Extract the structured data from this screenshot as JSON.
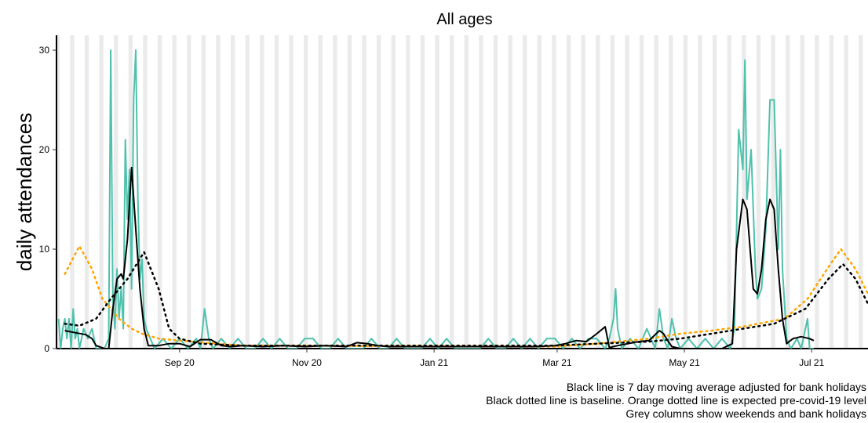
{
  "chart_data": {
    "type": "line",
    "title": "All ages",
    "ylabel": "daily attendances",
    "notes": [
      "Black line is 7 day moving average adjusted for bank holidays",
      "Black dotted line is baseline. Orange dotted line is expected pre-covid-19 level",
      "Grey columns show weekends and bank holidays"
    ],
    "xlim": [
      -59,
      330
    ],
    "ylim": [
      0,
      31.5
    ],
    "xticks": [
      {
        "value": 0,
        "label": "Sep 20"
      },
      {
        "value": 61,
        "label": "Nov 20"
      },
      {
        "value": 122,
        "label": "Jan 21"
      },
      {
        "value": 181,
        "label": "Mar 21"
      },
      {
        "value": 242,
        "label": "May 21"
      },
      {
        "value": 303,
        "label": "Jul 21"
      }
    ],
    "yticks": [
      0,
      10,
      20,
      30
    ],
    "series": [
      {
        "color": "#4fc1ac",
        "linestyle": "solid",
        "width": 2,
        "x": [
          -58,
          -57,
          -56,
          -55,
          -54,
          -53,
          -52,
          -51,
          -50,
          -49,
          -48,
          -46,
          -44,
          -42,
          -40,
          -36,
          -34,
          -33,
          -32,
          -31,
          -30,
          -29,
          -28,
          -27,
          -26,
          -25,
          -24,
          -23,
          -22,
          -21,
          -20,
          -19,
          -18,
          -17,
          -16,
          -14,
          -12,
          -8,
          -4,
          0,
          4,
          8,
          10,
          12,
          14,
          16,
          20,
          24,
          28,
          32,
          36,
          40,
          44,
          48,
          52,
          56,
          60,
          64,
          68,
          72,
          76,
          80,
          84,
          88,
          92,
          96,
          100,
          104,
          108,
          112,
          116,
          120,
          124,
          128,
          132,
          136,
          140,
          144,
          148,
          152,
          156,
          160,
          164,
          168,
          172,
          176,
          180,
          184,
          188,
          192,
          196,
          200,
          204,
          206,
          208,
          209,
          210,
          212,
          216,
          220,
          224,
          228,
          230,
          232,
          234,
          236,
          238,
          240,
          244,
          248,
          252,
          256,
          260,
          264,
          266,
          268,
          270,
          271,
          272,
          274,
          276,
          277,
          279,
          281,
          283,
          285,
          287,
          288,
          289,
          291,
          293,
          296,
          298,
          300,
          301,
          302,
          304
        ],
        "values": [
          3,
          0,
          2,
          3,
          1,
          3,
          0,
          4,
          1,
          2,
          0,
          2,
          1,
          2,
          0,
          0,
          1,
          30,
          5,
          2,
          8,
          3,
          6,
          2,
          21,
          13,
          18,
          6,
          25,
          30,
          15,
          7,
          9,
          3,
          2,
          1,
          0,
          1,
          0,
          1,
          0,
          1,
          0,
          4,
          1,
          0,
          1,
          0,
          1,
          0,
          0,
          1,
          0,
          1,
          0,
          0,
          1,
          1,
          0,
          0,
          1,
          0,
          0,
          0,
          1,
          0,
          0,
          1,
          0,
          0,
          0,
          1,
          0,
          1,
          0,
          0,
          0,
          0,
          1,
          0,
          0,
          1,
          0,
          1,
          0,
          1,
          1,
          0,
          1,
          0,
          1,
          1,
          0,
          1,
          3,
          6,
          2,
          0,
          1,
          0,
          2,
          0,
          4,
          1,
          0,
          3,
          1,
          0,
          1,
          0,
          1,
          0,
          1,
          0,
          2,
          22,
          18,
          29,
          15,
          20,
          8,
          5,
          6,
          12,
          25,
          25,
          10,
          20,
          8,
          1,
          0,
          1,
          0,
          2,
          3,
          0,
          0
        ]
      },
      {
        "color": "#ffa500",
        "linestyle": "dotted",
        "width": 2.5,
        "x": [
          -55,
          -48,
          -42,
          -37,
          -29,
          -23,
          -18,
          -10,
          0,
          30,
          180,
          200,
          225,
          240,
          255,
          262,
          270,
          290,
          301,
          312,
          317,
          324,
          330
        ],
        "values": [
          7.5,
          10.3,
          8,
          5,
          3,
          2,
          1.5,
          1,
          0.8,
          0.3,
          0.2,
          0.5,
          1,
          1.5,
          1.8,
          2,
          2.2,
          3,
          5,
          8.5,
          10,
          8,
          5.5
        ]
      },
      {
        "color": "#000000",
        "linestyle": "dotted",
        "width": 2.5,
        "x": [
          -55,
          -48,
          -40,
          -33,
          -25,
          -17,
          -10,
          -5,
          0,
          10,
          30,
          100,
          180,
          200,
          225,
          240,
          255,
          270,
          285,
          300,
          311,
          318,
          324,
          330
        ],
        "values": [
          2.5,
          2.3,
          3,
          5,
          7,
          9.7,
          6,
          2,
          1,
          0.5,
          0.3,
          0.3,
          0.3,
          0.5,
          0.7,
          1,
          1.5,
          2,
          2.5,
          4,
          7,
          8.5,
          7,
          4.5
        ]
      },
      {
        "color": "#000000",
        "linestyle": "solid",
        "width": 2,
        "x": [
          -55,
          -50,
          -45,
          -42,
          -40,
          -36,
          -34,
          -32,
          -30,
          -28,
          -27,
          -25,
          -23,
          -21,
          -19,
          -17,
          -15,
          -10,
          -5,
          0,
          5,
          10,
          15,
          20,
          25,
          30,
          40,
          50,
          60,
          70,
          80,
          85,
          90,
          95,
          100,
          120,
          140,
          160,
          170,
          180,
          185,
          190,
          195,
          200,
          204,
          206,
          210,
          215,
          220,
          225,
          230,
          232,
          234,
          236,
          240,
          250,
          260,
          265,
          267,
          270,
          272,
          275,
          277,
          279,
          281,
          283,
          285,
          287,
          289,
          291,
          294,
          298,
          302,
          304
        ],
        "values": [
          1.8,
          1.6,
          1.4,
          1,
          0.3,
          0,
          0,
          4,
          7,
          7.5,
          7,
          11,
          18.2,
          12,
          6,
          2,
          0.3,
          0.3,
          0.5,
          0.5,
          0.2,
          0.9,
          0.9,
          0.3,
          0.2,
          0.3,
          0.2,
          0.3,
          0.2,
          0.3,
          0.2,
          0.6,
          0.5,
          0.3,
          0.2,
          0.2,
          0.2,
          0.2,
          0.2,
          0.3,
          0.5,
          0.8,
          0.7,
          1.5,
          2.2,
          0.1,
          0.3,
          0.5,
          0.7,
          0.8,
          1.8,
          1.5,
          0.8,
          0.2,
          0,
          0,
          0,
          0.5,
          10,
          15,
          14,
          6,
          5.5,
          8,
          13,
          15,
          14,
          8,
          3,
          0.5,
          1,
          1.2,
          1,
          0.8
        ]
      }
    ]
  }
}
